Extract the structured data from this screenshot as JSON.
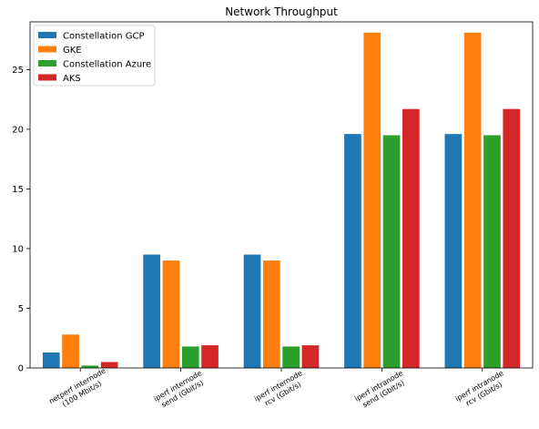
{
  "chart_data": {
    "type": "bar",
    "title": "Network Throughput",
    "xlabel": "",
    "ylabel": "",
    "ylim": [
      0,
      29
    ],
    "yticks": [
      0,
      5,
      10,
      15,
      20,
      25
    ],
    "grid": false,
    "legend_position": "top-left",
    "categories": [
      [
        "netperf internode",
        "(100 Mbit/s)"
      ],
      [
        "iperf internode",
        "send (Gbit/s)"
      ],
      [
        "iperf internode",
        "rcv (Gbit/s)"
      ],
      [
        "iperf intranode",
        "send (Gbit/s)"
      ],
      [
        "iperf intranode",
        "rcv (Gbit/s)"
      ]
    ],
    "series": [
      {
        "name": "Constellation GCP",
        "color": "#1f77b4",
        "values": [
          1.3,
          9.5,
          9.5,
          19.6,
          19.6
        ]
      },
      {
        "name": "GKE",
        "color": "#ff7f0e",
        "values": [
          2.8,
          9.0,
          9.0,
          28.1,
          28.1
        ]
      },
      {
        "name": "Constellation Azure",
        "color": "#2ca02c",
        "values": [
          0.2,
          1.8,
          1.8,
          19.5,
          19.5
        ]
      },
      {
        "name": "AKS",
        "color": "#d62728",
        "values": [
          0.5,
          1.9,
          1.9,
          21.7,
          21.7
        ]
      }
    ]
  }
}
